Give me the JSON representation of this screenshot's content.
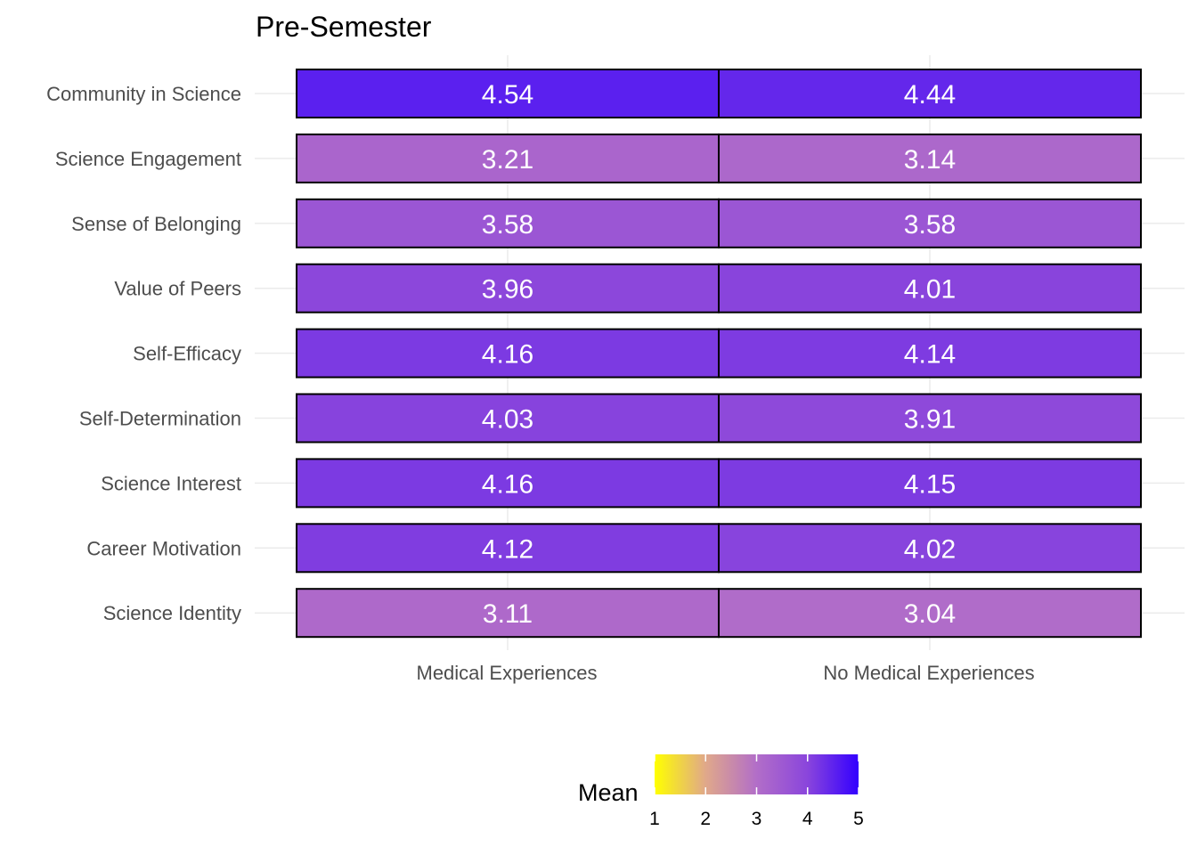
{
  "chart_data": {
    "type": "heatmap",
    "title": "Pre-Semester",
    "x_categories": [
      "Medical Experiences",
      "No Medical Experiences"
    ],
    "y_categories": [
      "Community in Science",
      "Science Engagement",
      "Sense of Belonging",
      "Value of Peers",
      "Self-Efficacy",
      "Self-Determination",
      "Science Interest",
      "Career Motivation",
      "Science Identity"
    ],
    "values": [
      [
        4.54,
        4.44
      ],
      [
        3.21,
        3.14
      ],
      [
        3.58,
        3.58
      ],
      [
        3.96,
        4.01
      ],
      [
        4.16,
        4.14
      ],
      [
        4.03,
        3.91
      ],
      [
        4.16,
        4.15
      ],
      [
        4.12,
        4.02
      ],
      [
        3.11,
        3.04
      ]
    ],
    "legend": {
      "title": "Mean",
      "position": "bottom",
      "min": 1,
      "max": 5,
      "ticks": [
        1,
        2,
        3,
        4,
        5
      ],
      "colors": [
        "#ffff00",
        "#e0a88a",
        "#b26ec8",
        "#8a45dc",
        "#3300ff"
      ]
    },
    "grid": true,
    "label_color": "#ffffff",
    "cell_border_color": "#000000"
  }
}
